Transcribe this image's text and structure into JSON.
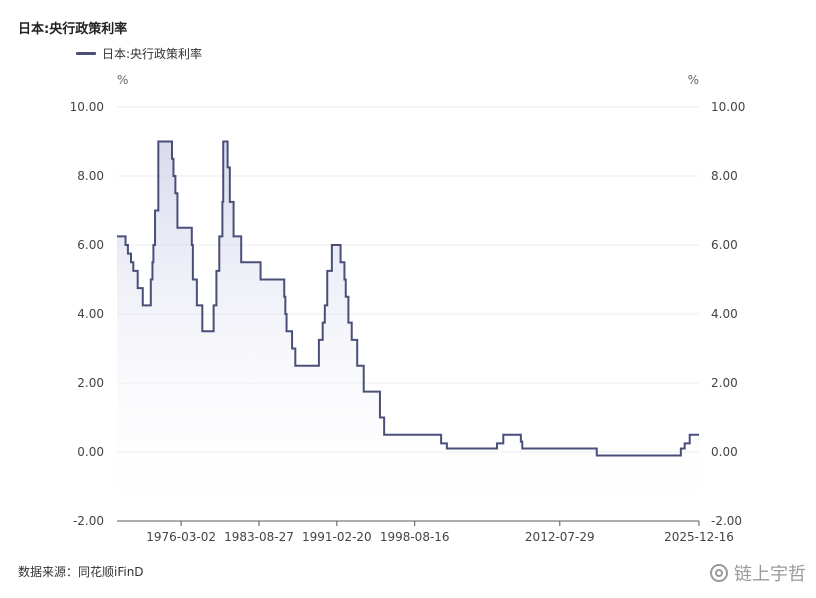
{
  "chart_data": {
    "type": "line",
    "title": "日本:央行政策利率",
    "series": [
      {
        "name": "日本:央行政策利率",
        "color": "#4a4f7a",
        "points": [
          [
            "1970-01-01",
            6.25
          ],
          [
            "1970-10-28",
            6.0
          ],
          [
            "1971-01-20",
            5.75
          ],
          [
            "1971-05-08",
            5.5
          ],
          [
            "1971-07-28",
            5.25
          ],
          [
            "1971-12-29",
            4.75
          ],
          [
            "1972-06-24",
            4.25
          ],
          [
            "1973-04-02",
            5.0
          ],
          [
            "1973-05-30",
            5.5
          ],
          [
            "1973-07-02",
            6.0
          ],
          [
            "1973-08-29",
            7.0
          ],
          [
            "1973-12-22",
            9.0
          ],
          [
            "1975-04-16",
            8.5
          ],
          [
            "1975-06-07",
            8.0
          ],
          [
            "1975-08-13",
            7.5
          ],
          [
            "1975-10-24",
            6.5
          ],
          [
            "1977-03-12",
            6.0
          ],
          [
            "1977-04-19",
            5.0
          ],
          [
            "1977-09-05",
            4.25
          ],
          [
            "1978-03-16",
            3.5
          ],
          [
            "1979-04-17",
            4.25
          ],
          [
            "1979-07-24",
            5.25
          ],
          [
            "1979-11-02",
            6.25
          ],
          [
            "1980-02-19",
            7.25
          ],
          [
            "1980-03-19",
            9.0
          ],
          [
            "1980-08-20",
            8.25
          ],
          [
            "1980-11-06",
            7.25
          ],
          [
            "1981-03-18",
            6.25
          ],
          [
            "1981-12-11",
            5.5
          ],
          [
            "1983-10-22",
            5.0
          ],
          [
            "1986-01-30",
            4.5
          ],
          [
            "1986-03-10",
            4.0
          ],
          [
            "1986-04-21",
            3.5
          ],
          [
            "1986-11-01",
            3.0
          ],
          [
            "1987-02-23",
            2.5
          ],
          [
            "1989-05-31",
            3.25
          ],
          [
            "1989-10-11",
            3.75
          ],
          [
            "1989-12-25",
            4.25
          ],
          [
            "1990-03-20",
            5.25
          ],
          [
            "1990-08-30",
            6.0
          ],
          [
            "1991-07-01",
            5.5
          ],
          [
            "1991-11-14",
            5.0
          ],
          [
            "1991-12-30",
            4.5
          ],
          [
            "1992-04-01",
            3.75
          ],
          [
            "1992-07-27",
            3.25
          ],
          [
            "1993-02-04",
            2.5
          ],
          [
            "1993-09-21",
            1.75
          ],
          [
            "1995-04-14",
            1.0
          ],
          [
            "1995-09-08",
            0.5
          ],
          [
            "2001-01-04",
            0.5
          ],
          [
            "2001-03-01",
            0.25
          ],
          [
            "2001-09-19",
            0.1
          ],
          [
            "2006-07-14",
            0.25
          ],
          [
            "2007-02-21",
            0.5
          ],
          [
            "2008-10-31",
            0.3
          ],
          [
            "2008-12-19",
            0.1
          ],
          [
            "2016-02-16",
            -0.1
          ],
          [
            "2024-03-19",
            0.1
          ],
          [
            "2024-07-31",
            0.25
          ],
          [
            "2025-01-24",
            0.5
          ],
          [
            "2025-12-16",
            0.5
          ]
        ]
      }
    ],
    "x_ticks": [
      "1976-03-02",
      "1983-08-27",
      "1991-02-20",
      "1998-08-16",
      "2012-07-29",
      "2025-12-16"
    ],
    "y_ticks": [
      "10.00",
      "8.00",
      "6.00",
      "4.00",
      "2.00",
      "0.00",
      "-2.00"
    ],
    "ylim": [
      -2,
      10
    ],
    "y_unit_left": "%",
    "y_unit_right": "%",
    "grid": true,
    "legend_position": "top-left"
  },
  "labels": {
    "title": "日本:央行政策利率",
    "legend": "日本:央行政策利率",
    "source": "数据来源：同花顺iFinD",
    "watermark": "链上宇哲"
  }
}
